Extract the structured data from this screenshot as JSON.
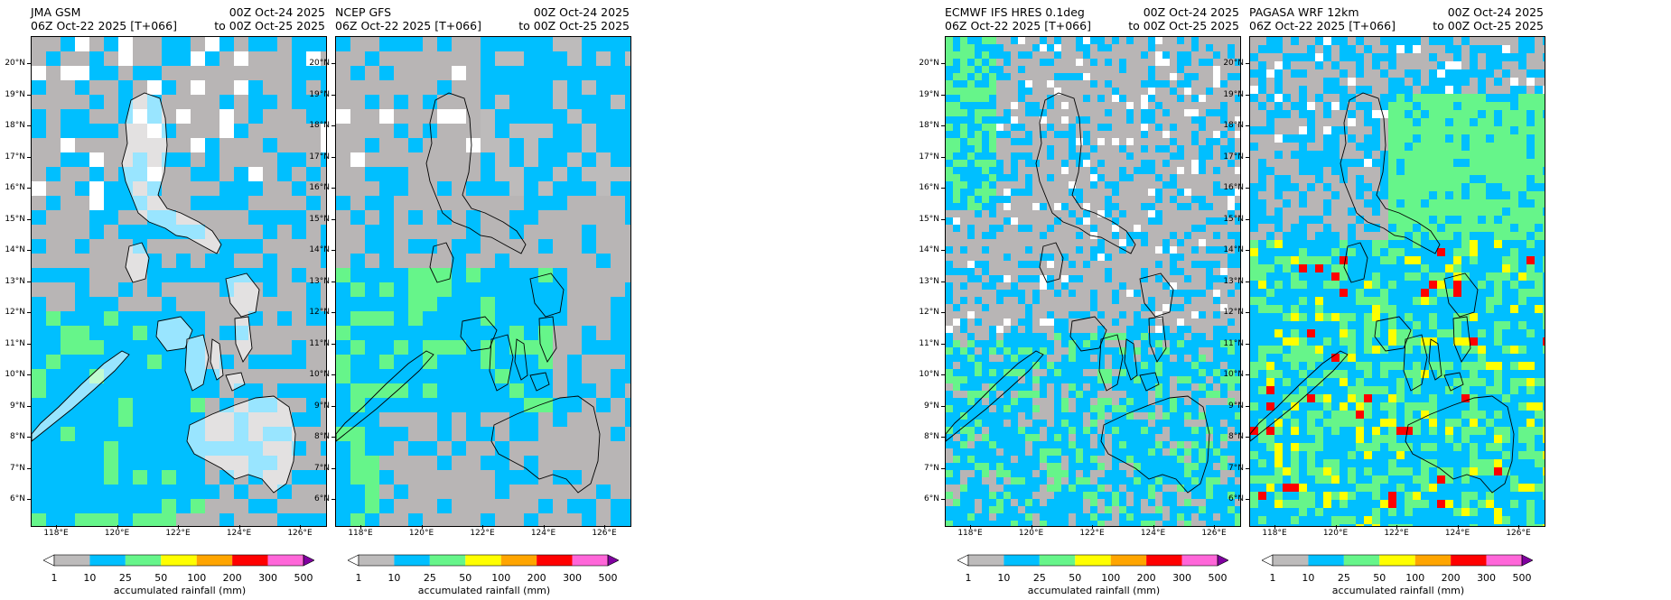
{
  "panels": [
    {
      "model": "JMA GSM",
      "init": "06Z Oct-22 2025 [T+066]",
      "valid_from": "00Z Oct-24 2025",
      "valid_to": "to 00Z Oct-25 2025",
      "style": "jma"
    },
    {
      "model": "NCEP GFS",
      "init": "06Z Oct-22 2025 [T+066]",
      "valid_from": "00Z Oct-24 2025",
      "valid_to": "to 00Z Oct-25 2025",
      "style": "gfs"
    },
    {
      "model": "ECMWF IFS HRES 0.1deg",
      "init": "06Z Oct-22 2025 [T+066]",
      "valid_from": "00Z Oct-24 2025",
      "valid_to": "to 00Z Oct-25 2025",
      "style": "ecmwf"
    },
    {
      "model": "PAGASA WRF 12km",
      "init": "06Z Oct-22 2025 [T+066]",
      "valid_from": "00Z Oct-24 2025",
      "valid_to": "to 00Z Oct-25 2025",
      "style": "wrf"
    }
  ],
  "lat_labels": [
    "20°N",
    "19°N",
    "18°N",
    "17°N",
    "16°N",
    "15°N",
    "14°N",
    "13°N",
    "12°N",
    "11°N",
    "10°N",
    "9°N",
    "8°N",
    "7°N",
    "6°N"
  ],
  "lon_labels": [
    "118°E",
    "120°E",
    "122°E",
    "124°E",
    "126°E"
  ],
  "colorbar": {
    "title": "accumulated rainfall (mm)",
    "levels": [
      "1",
      "10",
      "25",
      "50",
      "100",
      "200",
      "300",
      "500"
    ],
    "colors": [
      "#bdbbbb",
      "#00bfff",
      "#66f58a",
      "#ffff00",
      "#ffa500",
      "#ff0000",
      "#ff66d9"
    ],
    "under_color": "#ffffff",
    "over_color": "#8000a0"
  }
}
